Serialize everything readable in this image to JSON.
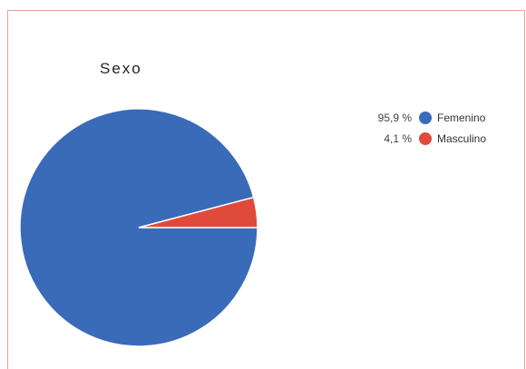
{
  "chart_data": {
    "type": "pie",
    "title": "Sexo",
    "slices": [
      {
        "label": "Femenino",
        "value": 95.9,
        "display": "95,9 %",
        "color": "#3a6bb9"
      },
      {
        "label": "Masculino",
        "value": 4.1,
        "display": "4,1 %",
        "color": "#e04a3b"
      }
    ],
    "legend_position": "right"
  }
}
